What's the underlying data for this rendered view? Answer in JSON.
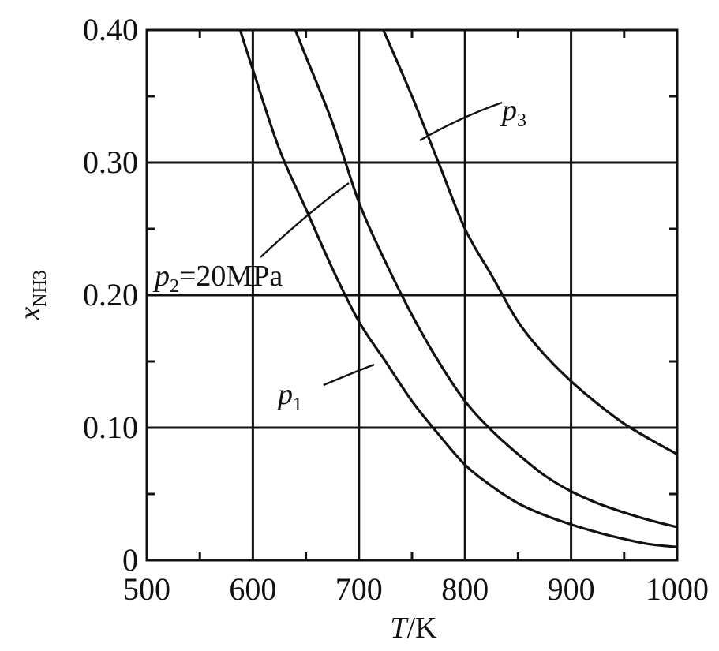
{
  "chart_data": {
    "type": "line",
    "xlabel": "T/K",
    "xlabel_parts": {
      "var": "T",
      "unit": "/K"
    },
    "ylabel": "x_NH3",
    "ylabel_parts": {
      "var": "x",
      "sub": "NH3"
    },
    "xlim": [
      500,
      1000
    ],
    "ylim": [
      0,
      0.4
    ],
    "x_ticks": [
      500,
      600,
      700,
      800,
      900,
      1000
    ],
    "y_ticks": [
      0,
      0.1,
      0.2,
      0.3,
      0.4
    ],
    "x_tick_labels": [
      "500",
      "600",
      "700",
      "800",
      "900",
      "1000"
    ],
    "y_tick_labels": [
      "0",
      "0.10",
      "0.20",
      "0.30",
      "0.40"
    ],
    "grid": true,
    "series": [
      {
        "name": "p1",
        "label_var": "p",
        "label_sub": "1",
        "x": [
          588,
          600,
          625,
          650,
          675,
          700,
          725,
          750,
          775,
          800,
          825,
          850,
          875,
          900,
          925,
          950,
          975,
          1000
        ],
        "y": [
          0.4,
          0.37,
          0.31,
          0.265,
          0.22,
          0.18,
          0.15,
          0.12,
          0.095,
          0.072,
          0.056,
          0.043,
          0.034,
          0.027,
          0.021,
          0.016,
          0.012,
          0.01
        ]
      },
      {
        "name": "p2=20MPa",
        "label_var": "p",
        "label_sub": "2",
        "label_rest": "=20MPa",
        "x": [
          640,
          650,
          675,
          700,
          725,
          750,
          775,
          800,
          825,
          850,
          875,
          900,
          925,
          950,
          975,
          1000
        ],
        "y": [
          0.4,
          0.38,
          0.33,
          0.27,
          0.225,
          0.185,
          0.15,
          0.12,
          0.098,
          0.08,
          0.064,
          0.052,
          0.043,
          0.036,
          0.03,
          0.025
        ]
      },
      {
        "name": "p3",
        "label_var": "p",
        "label_sub": "3",
        "x": [
          723,
          750,
          775,
          800,
          825,
          850,
          875,
          900,
          925,
          950,
          975,
          1000
        ],
        "y": [
          0.4,
          0.35,
          0.3,
          0.25,
          0.215,
          0.18,
          0.155,
          0.135,
          0.118,
          0.103,
          0.091,
          0.08
        ]
      }
    ]
  }
}
